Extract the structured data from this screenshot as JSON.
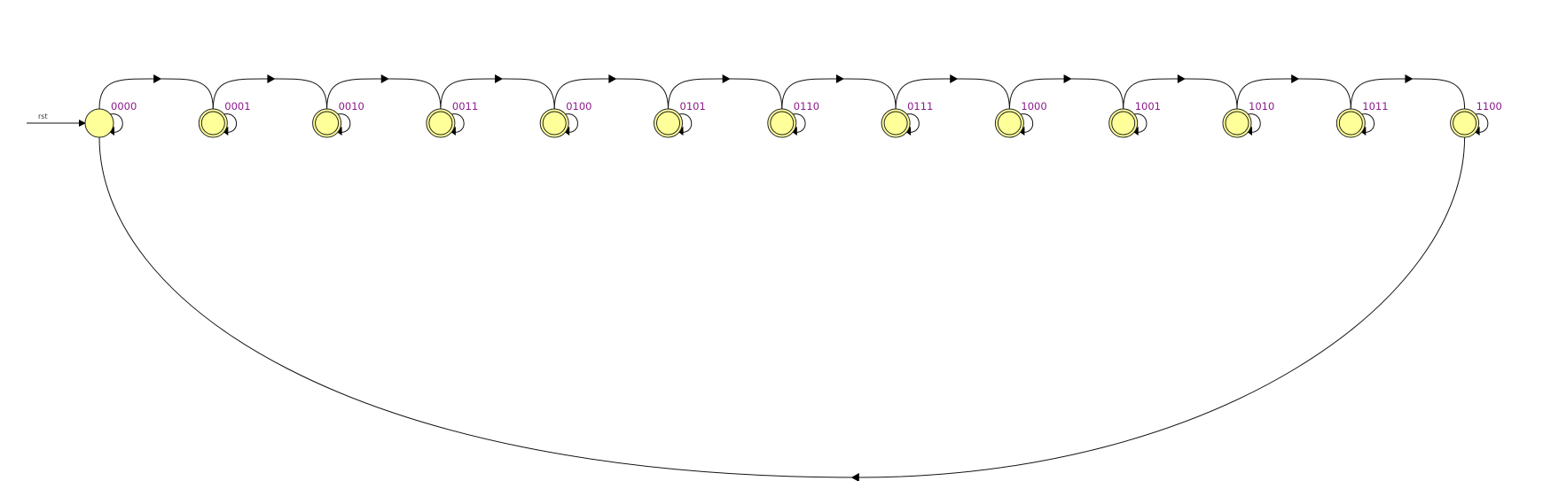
{
  "diagram": {
    "reset_input": {
      "label": "rst",
      "target": "0000"
    },
    "initial_state": "0000",
    "states": [
      {
        "name": "0000"
      },
      {
        "name": "0001"
      },
      {
        "name": "0010"
      },
      {
        "name": "0011"
      },
      {
        "name": "0100"
      },
      {
        "name": "0101"
      },
      {
        "name": "0110"
      },
      {
        "name": "0111"
      },
      {
        "name": "1000"
      },
      {
        "name": "1001"
      },
      {
        "name": "1010"
      },
      {
        "name": "1011"
      },
      {
        "name": "1100"
      }
    ],
    "transitions": [
      {
        "from": "0000",
        "to": "0001"
      },
      {
        "from": "0001",
        "to": "0010"
      },
      {
        "from": "0010",
        "to": "0011"
      },
      {
        "from": "0011",
        "to": "0100"
      },
      {
        "from": "0100",
        "to": "0101"
      },
      {
        "from": "0101",
        "to": "0110"
      },
      {
        "from": "0110",
        "to": "0111"
      },
      {
        "from": "0111",
        "to": "1000"
      },
      {
        "from": "1000",
        "to": "1001"
      },
      {
        "from": "1001",
        "to": "1010"
      },
      {
        "from": "1010",
        "to": "1011"
      },
      {
        "from": "1011",
        "to": "1100"
      },
      {
        "from": "1100",
        "to": "0000"
      }
    ],
    "self_loops": [
      "0000",
      "0001",
      "0010",
      "0011",
      "0100",
      "0101",
      "0110",
      "0111",
      "1000",
      "1001",
      "1010",
      "1011",
      "1100"
    ],
    "colors": {
      "state_fill": "#ffff99",
      "state_stroke": "#222222",
      "label": "#8b1a8b",
      "edge": "#111111"
    }
  }
}
